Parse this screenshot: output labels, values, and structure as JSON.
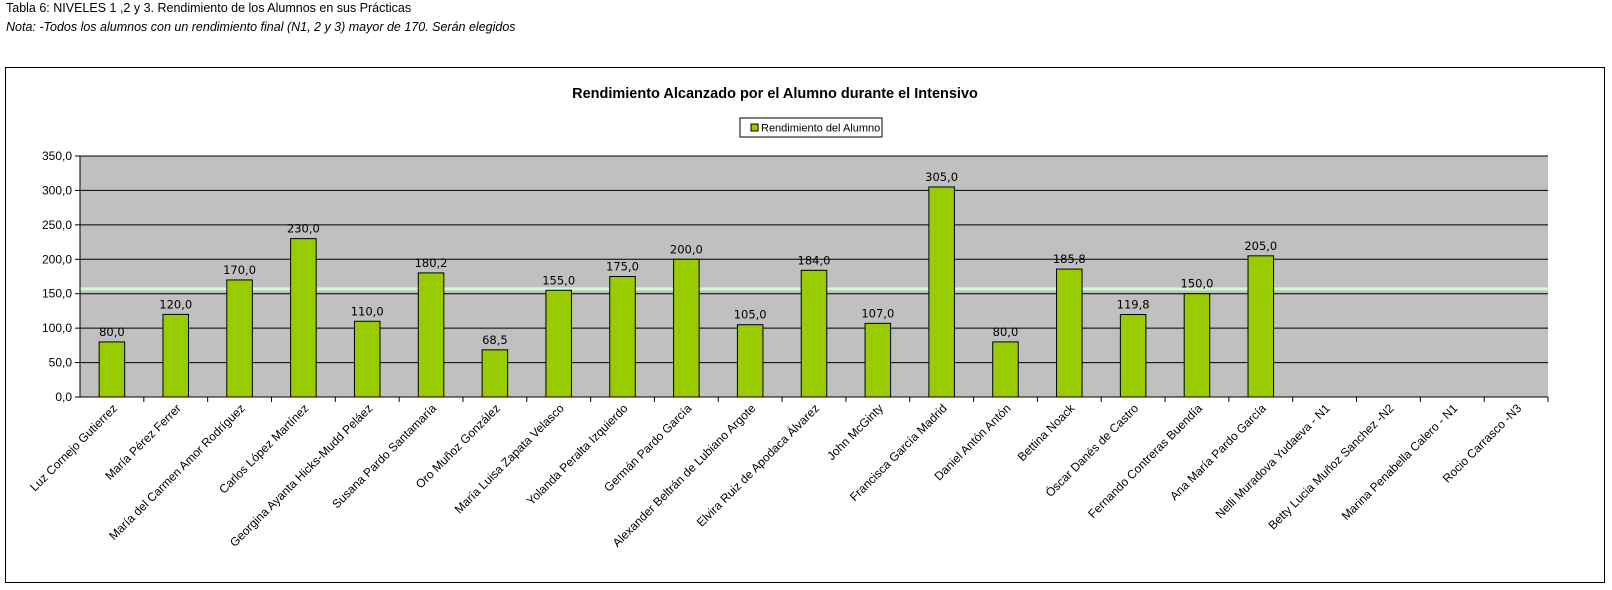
{
  "caption": {
    "title": "Tabla 6: NIVELES 1 ,2 y 3. Rendimiento de los Alumnos en sus Prácticas",
    "note": "Nota: -Todos los alumnos con un rendimiento final (N1, 2 y 3) mayor de 170. Serán elegidos"
  },
  "chart_data": {
    "type": "bar",
    "title": "Rendimiento Alcanzado por el Alumno durante el Intensivo",
    "legend_position": "top-center",
    "grid": true,
    "ylim": [
      0,
      350
    ],
    "yticks": [
      "0,0",
      "50,0",
      "100,0",
      "150,0",
      "200,0",
      "250,0",
      "300,0",
      "350,0"
    ],
    "reference_line": 157,
    "categories": [
      "Luz Cornejo Gutierrez",
      "María Pérez Ferrer",
      "María del Carmen Amor Rodríguez",
      "Carlos López Martínez",
      "Georgina Ayanta Hicks-Mudd Peláez",
      "Susana Pardo Santamaría",
      "Oro Muñoz González",
      "María Luisa Zapata Velasco",
      "Yolanda Peralta Izquierdo",
      "Germán Pardo García",
      "Alexander Beltrán de Lubiano Argote",
      "Elvira Ruiz de Apodaca Álvarez",
      "John McGinty",
      "Francisca García Madrid",
      "Daniel Antón Antón",
      "Bettina Noack",
      "Óscar Danés de Castro",
      "Fernando Contreras Buendía",
      "Ana María Pardo García",
      "Nelli Muradova Yudaeva  - N1",
      "Betty Lucia Muñoz Sanchez   -N2",
      "Marina Penabella Calero  - N1",
      "Rocio Carrasco   -N3"
    ],
    "series": [
      {
        "name": "Rendimiento del Alumno",
        "color": "#99cc00",
        "values": [
          80.0,
          120.0,
          170.0,
          230.0,
          110.0,
          180.2,
          68.5,
          155.0,
          175.0,
          200.0,
          105.0,
          184.0,
          107.0,
          305.0,
          80.0,
          185.8,
          119.8,
          150.0,
          205.0,
          null,
          null,
          null,
          null
        ],
        "labels": [
          "80,0",
          "120,0",
          "170,0",
          "230,0",
          "110,0",
          "180,2",
          "68,5",
          "155,0",
          "175,0",
          "200,0",
          "105,0",
          "184,0",
          "107,0",
          "305,0",
          "80,0",
          "185,8",
          "119,8",
          "150,0",
          "205,0",
          null,
          null,
          null,
          null
        ]
      }
    ],
    "colors": {
      "plot_background": "#c0c0c0",
      "gridline": "#000000",
      "reference_line": "#ccffcc",
      "bar_outline": "#000000"
    }
  }
}
